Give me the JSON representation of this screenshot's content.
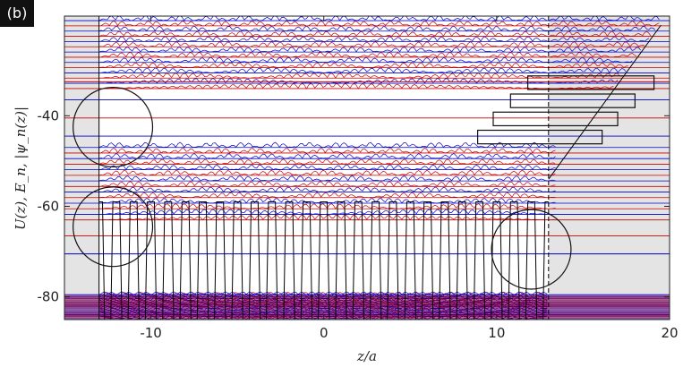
{
  "panel_label": "(b)",
  "chart_data": {
    "type": "line",
    "xlabel": "z/a",
    "ylabel": "U(z),  E_n,  |ψ_n(z)|",
    "xlim": [
      -15,
      20
    ],
    "ylim": [
      -85,
      -18
    ],
    "x_ticks": [
      -10,
      0,
      10,
      20
    ],
    "x_tick_labels": [
      "-10",
      "0",
      "10",
      "20"
    ],
    "y_ticks": [
      -80,
      -60,
      -40
    ],
    "y_tick_labels": [
      "-80",
      "-60",
      "-40"
    ],
    "potential": {
      "period": 1,
      "well_centers_start": -12.5,
      "well_count": 26,
      "barrier_level": -59,
      "well_bottom": -85,
      "barrier_region": [
        -13,
        13
      ],
      "linear_ramp": {
        "from": [
          13,
          -54
        ],
        "to": [
          19.5,
          -20
        ]
      }
    },
    "bands": [
      {
        "name": "lower band",
        "from": -85,
        "to": -79.5,
        "count": 26
      },
      {
        "name": "middle band",
        "from": -63,
        "to": -47,
        "count": 14
      },
      {
        "name": "upper band",
        "from": -34,
        "to": -19,
        "count": 14
      }
    ],
    "isolated_levels": [
      {
        "energy": -70.5,
        "color": "#0000cc"
      },
      {
        "energy": -66.5,
        "color": "#cc0000"
      },
      {
        "energy": -44.5,
        "color": "#0000cc"
      },
      {
        "energy": -40.5,
        "color": "#cc0000"
      },
      {
        "energy": -36.5,
        "color": "#0000cc"
      },
      {
        "energy": -32.5,
        "color": "#cc0000"
      }
    ],
    "circles": [
      {
        "center": [
          -12.2,
          -42.5
        ],
        "radius": 2.3
      },
      {
        "center": [
          -12.2,
          -64.5
        ],
        "radius": 2.3
      },
      {
        "center": [
          12,
          -69.5
        ],
        "radius": 2.3
      }
    ],
    "inset_boxes": [
      {
        "x": [
          8.9,
          16.1
        ],
        "y": [
          -46.2,
          -43.2
        ]
      },
      {
        "x": [
          9.8,
          17
        ],
        "y": [
          -42.2,
          -39.2
        ]
      },
      {
        "x": [
          10.8,
          18
        ],
        "y": [
          -38.2,
          -35.2
        ]
      },
      {
        "x": [
          11.8,
          19.1
        ],
        "y": [
          -34.2,
          -31.2
        ]
      }
    ],
    "shaded_regions": [
      [
        -15,
        -13
      ],
      [
        13,
        20
      ]
    ],
    "dashed_line_x": 13,
    "series_colors": {
      "potential": "#000000",
      "even": "#cc0000",
      "odd": "#0000cc"
    }
  }
}
